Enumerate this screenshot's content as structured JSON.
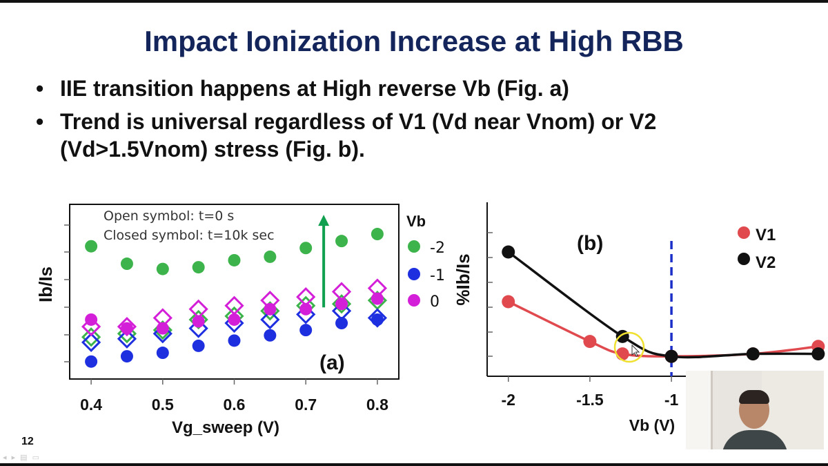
{
  "slide": {
    "title": "Impact Ionization Increase at High RBB",
    "bullets": [
      "IIE transition happens at High reverse Vb (Fig. a)",
      "Trend is universal regardless of V1 (Vd near Vnom) or V2 (Vd>1.5Vnom) stress (Fig. b)."
    ],
    "page_number": "12"
  },
  "colors": {
    "title": "#13255b",
    "green": "#3cb44b",
    "blue": "#1e2fe0",
    "magenta": "#d41fd8",
    "red": "#e04a4f",
    "black": "#111111",
    "arrow": "#10a050",
    "vline": "#1c2fc8",
    "highlight": "#f0e030"
  },
  "chart_data": [
    {
      "type": "scatter",
      "panel_label": "(a)",
      "xlabel": "Vg_sweep (V)",
      "ylabel": "Ib/Is",
      "xlim": [
        0.37,
        0.83
      ],
      "ylim": [
        0,
        10
      ],
      "xticks": [
        "0.4",
        "0.5",
        "0.6",
        "0.7",
        "0.8"
      ],
      "legend_title": "Vb",
      "legend_position": "right",
      "annotations": [
        "Open symbol: t=0 s",
        "Closed symbol: t=10k sec"
      ],
      "arrow": {
        "x": 0.725,
        "y_from": 4.1,
        "y_to": 9.4
      },
      "x": [
        0.4,
        0.45,
        0.5,
        0.55,
        0.6,
        0.65,
        0.7,
        0.75,
        0.8
      ],
      "series": [
        {
          "name": "-2",
          "symbol": "closed",
          "color": "green",
          "values": [
            7.6,
            6.6,
            6.3,
            6.4,
            6.8,
            7.0,
            7.5,
            7.9,
            8.3
          ]
        },
        {
          "name": "-2",
          "symbol": "open",
          "color": "green",
          "values": [
            2.4,
            2.6,
            2.8,
            3.4,
            3.6,
            3.9,
            4.2,
            4.3,
            4.5
          ]
        },
        {
          "name": "-1",
          "symbol": "closed",
          "color": "blue",
          "values": [
            1.0,
            1.3,
            1.5,
            1.9,
            2.2,
            2.5,
            2.8,
            3.2,
            3.4
          ]
        },
        {
          "name": "-1",
          "symbol": "open",
          "color": "blue",
          "values": [
            2.1,
            2.3,
            2.6,
            2.9,
            3.2,
            3.4,
            3.7,
            3.9,
            3.5
          ]
        },
        {
          "name": "0",
          "symbol": "closed",
          "color": "magenta",
          "values": [
            3.4,
            2.9,
            2.9,
            3.3,
            3.4,
            4.0,
            4.0,
            4.3,
            4.6
          ]
        },
        {
          "name": "0",
          "symbol": "open",
          "color": "magenta",
          "values": [
            3.0,
            3.0,
            3.5,
            4.0,
            4.2,
            4.5,
            4.7,
            5.0,
            5.2
          ]
        }
      ]
    },
    {
      "type": "line",
      "panel_label": "(b)",
      "xlabel": "Vb (V)",
      "ylabel": "%Ib/Is",
      "xlim": [
        -2.13,
        -0.04
      ],
      "ylim": [
        0,
        7
      ],
      "xticks": [
        "-2",
        "-1.5",
        "-1"
      ],
      "legend_position": "top-right",
      "vline_x": -1,
      "x": [
        -2,
        -1.5,
        -1.3,
        -1,
        -0.5,
        -0.1
      ],
      "series": [
        {
          "name": "V1",
          "color": "red",
          "values": [
            3.0,
            1.4,
            0.9,
            0.8,
            0.9,
            1.2
          ]
        },
        {
          "name": "V2",
          "color": "black",
          "values": [
            5.0,
            null,
            1.6,
            0.8,
            0.9,
            0.9
          ]
        }
      ]
    }
  ]
}
